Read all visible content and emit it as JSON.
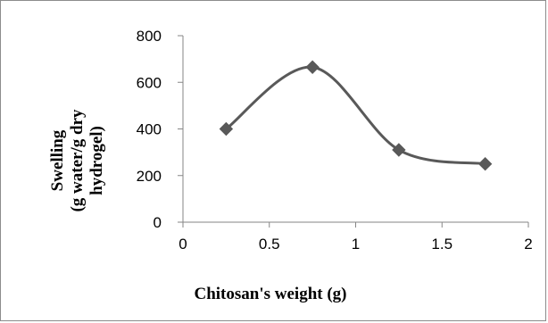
{
  "chart_data": {
    "type": "line",
    "title": "",
    "xlabel": "Chitosan's weight (g)",
    "ylabel_lines": [
      "Swelling",
      "(g water/g dry",
      "hydrogel)"
    ],
    "x": [
      0.25,
      0.75,
      1.25,
      1.75
    ],
    "series": [
      {
        "values": [
          400,
          665,
          310,
          250
        ]
      }
    ],
    "xlim": [
      0,
      2
    ],
    "ylim": [
      0,
      800
    ],
    "x_ticks": [
      0,
      0.5,
      1,
      1.5,
      2
    ],
    "x_tick_labels": [
      "0",
      "0.5",
      "1",
      "1.5",
      "2"
    ],
    "y_ticks": [
      0,
      200,
      400,
      600,
      800
    ],
    "y_tick_labels": [
      "0",
      "200",
      "400",
      "600",
      "800"
    ],
    "grid": false,
    "legend": "none",
    "smooth": true,
    "marker": "diamond",
    "line_color": "#595959",
    "marker_color": "#595959"
  }
}
